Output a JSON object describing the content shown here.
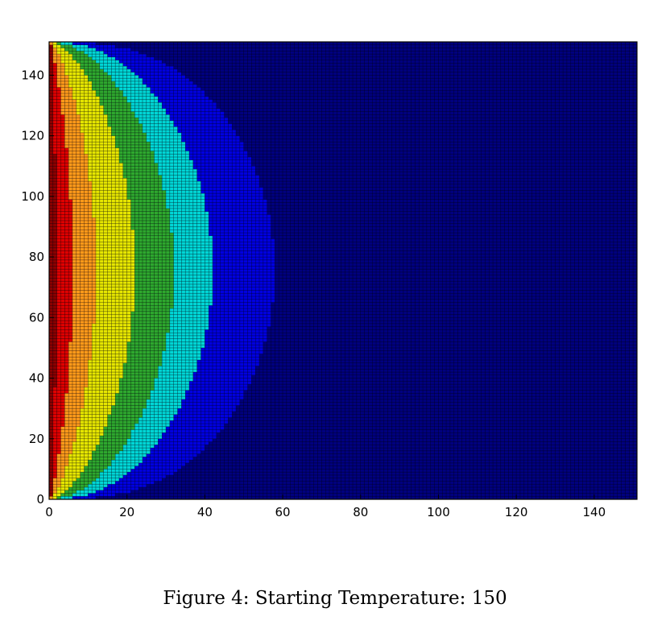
{
  "caption": "Figure 4: Starting Temperature: 150",
  "chart_data": {
    "type": "heatmap",
    "title": "",
    "xlabel": "",
    "ylabel": "",
    "xlim": [
      0,
      151
    ],
    "ylim": [
      0,
      151
    ],
    "grid_size": 151,
    "cell_edges": true,
    "x_ticks": [
      0,
      20,
      40,
      60,
      80,
      100,
      120,
      140
    ],
    "y_ticks": [
      0,
      20,
      40,
      60,
      80,
      100,
      120,
      140
    ],
    "colormap": "jet",
    "levels": [
      "#00007f",
      "#0000e0",
      "#00d6d6",
      "#2ea82e",
      "#e6e600",
      "#ff9a1a",
      "#e00000",
      "#8b0000"
    ],
    "contour_half_widths_at_center": [
      58,
      42,
      32,
      22,
      12,
      6,
      2
    ],
    "background_color": "#00007f"
  }
}
